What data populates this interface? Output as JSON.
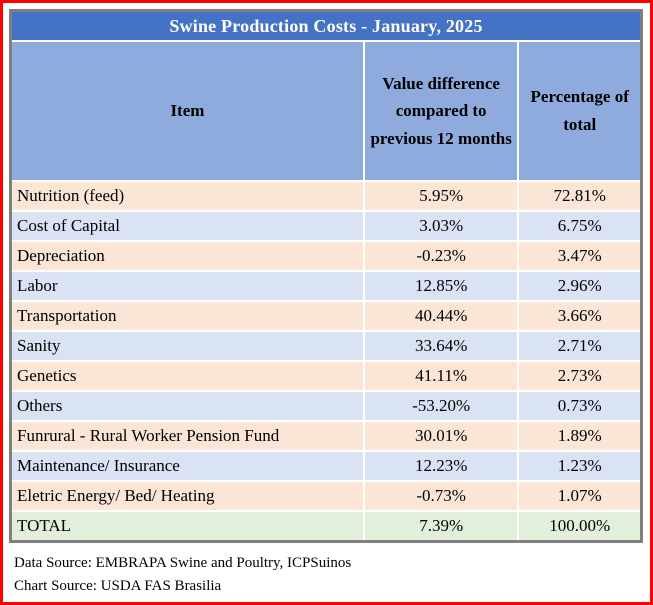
{
  "title": "Swine Production Costs - January, 2025",
  "table": {
    "columns": [
      "Item",
      "Value difference compared to previous 12 months",
      "Percentage of total"
    ],
    "rows": [
      {
        "item": "Nutrition (feed)",
        "value": "5.95%",
        "pct": "72.81%",
        "is_total": false
      },
      {
        "item": "Cost of Capital",
        "value": "3.03%",
        "pct": "6.75%",
        "is_total": false
      },
      {
        "item": "Depreciation",
        "value": "-0.23%",
        "pct": "3.47%",
        "is_total": false
      },
      {
        "item": "Labor",
        "value": "12.85%",
        "pct": "2.96%",
        "is_total": false
      },
      {
        "item": "Transportation",
        "value": "40.44%",
        "pct": "3.66%",
        "is_total": false
      },
      {
        "item": "Sanity",
        "value": "33.64%",
        "pct": "2.71%",
        "is_total": false
      },
      {
        "item": "Genetics",
        "value": "41.11%",
        "pct": "2.73%",
        "is_total": false
      },
      {
        "item": "Others",
        "value": "-53.20%",
        "pct": "0.73%",
        "is_total": false
      },
      {
        "item": "Funrural - Rural Worker Pension Fund",
        "value": "30.01%",
        "pct": "1.89%",
        "is_total": false
      },
      {
        "item": "Maintenance/ Insurance",
        "value": "12.23%",
        "pct": "1.23%",
        "is_total": false
      },
      {
        "item": "Eletric Energy/ Bed/ Heating",
        "value": "-0.73%",
        "pct": "1.07%",
        "is_total": false
      },
      {
        "item": "TOTAL",
        "value": "7.39%",
        "pct": "100.00%",
        "is_total": true
      }
    ]
  },
  "footer": {
    "data_source": "Data Source: EMBRAPA Swine and Poultry, ICPSuinos",
    "chart_source": "Chart Source: USDA FAS Brasilia"
  },
  "colors": {
    "outer_border": "#ff0000",
    "table_border": "#7f7f7f",
    "title_bg": "#4472c4",
    "title_text": "#ffffff",
    "header_bg": "#8faadc",
    "row_peach": "#fbe5d6",
    "row_blue": "#dae3f3",
    "total_green": "#e2efda"
  },
  "chart_data": {
    "type": "table",
    "title": "Swine Production Costs - January, 2025",
    "columns": [
      "Item",
      "Value difference compared to previous 12 months (%)",
      "Percentage of total (%)"
    ],
    "rows": [
      [
        "Nutrition (feed)",
        5.95,
        72.81
      ],
      [
        "Cost of Capital",
        3.03,
        6.75
      ],
      [
        "Depreciation",
        -0.23,
        3.47
      ],
      [
        "Labor",
        12.85,
        2.96
      ],
      [
        "Transportation",
        40.44,
        3.66
      ],
      [
        "Sanity",
        33.64,
        2.71
      ],
      [
        "Genetics",
        41.11,
        2.73
      ],
      [
        "Others",
        -53.2,
        0.73
      ],
      [
        "Funrural - Rural Worker Pension Fund",
        30.01,
        1.89
      ],
      [
        "Maintenance/ Insurance",
        12.23,
        1.23
      ],
      [
        "Eletric Energy/ Bed/ Heating",
        -0.73,
        1.07
      ],
      [
        "TOTAL",
        7.39,
        100.0
      ]
    ]
  }
}
